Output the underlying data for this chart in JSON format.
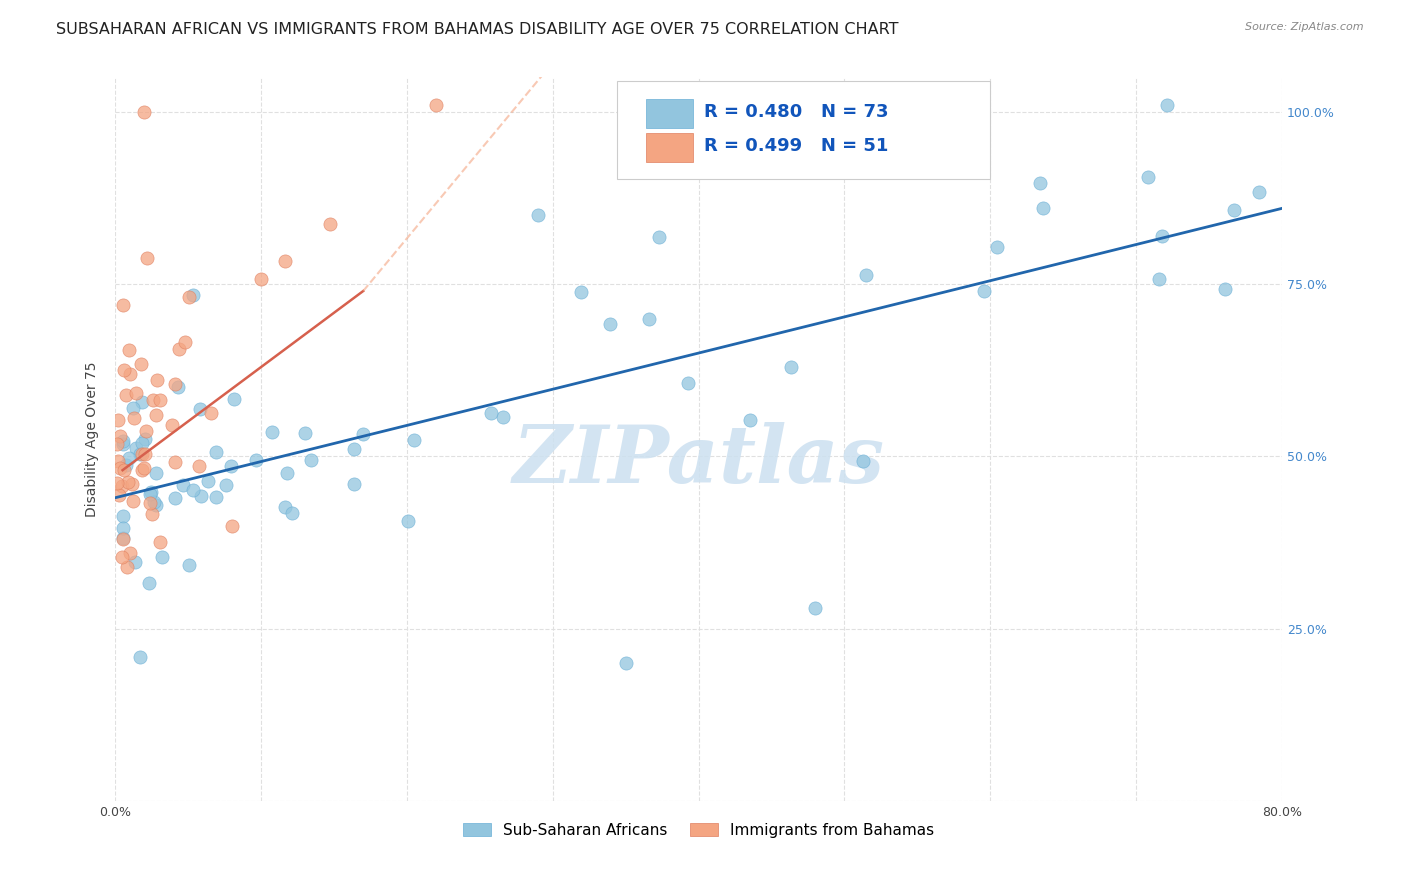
{
  "title": "SUBSAHARAN AFRICAN VS IMMIGRANTS FROM BAHAMAS DISABILITY AGE OVER 75 CORRELATION CHART",
  "source": "Source: ZipAtlas.com",
  "ylabel": "Disability Age Over 75",
  "x_min": 0.0,
  "x_max": 0.8,
  "y_min": 0.0,
  "y_max": 1.05,
  "blue_color": "#92c5de",
  "blue_line_color": "#2166ac",
  "pink_color": "#f4a582",
  "pink_line_color": "#d6604d",
  "pink_dashed_color": "#f4a582",
  "watermark": "ZIPatlas",
  "watermark_color": "#cce0f0",
  "legend_r_blue": "R = 0.480",
  "legend_n_blue": "N = 73",
  "legend_r_pink": "R = 0.499",
  "legend_n_pink": "N = 51",
  "legend_label_blue": "Sub-Saharan Africans",
  "legend_label_pink": "Immigrants from Bahamas",
  "background_color": "#ffffff",
  "grid_color": "#e0e0e0",
  "right_tick_color": "#4488cc",
  "title_color": "#222222",
  "ylabel_color": "#444444",
  "tick_color": "#444444",
  "title_fontsize": 11.5,
  "axis_label_fontsize": 10,
  "tick_fontsize": 9,
  "legend_fontsize": 13,
  "source_fontsize": 8
}
